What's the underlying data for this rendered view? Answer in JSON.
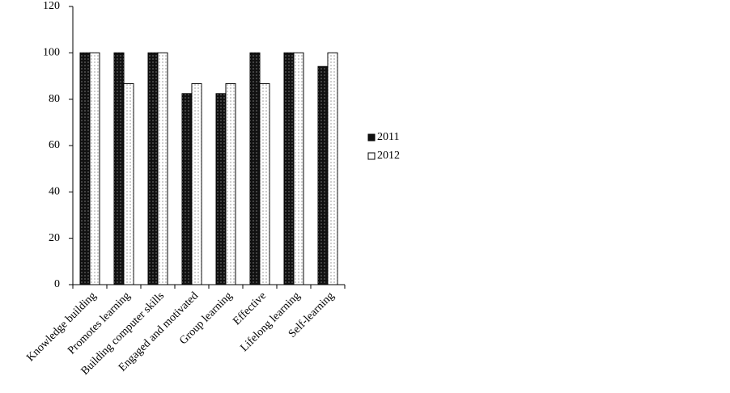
{
  "chart_data": {
    "type": "bar",
    "categories": [
      "Knowledge building",
      "Promotes learning",
      "Building computer skills",
      "Engaged and motivated",
      "Group learning",
      "Effective",
      "Lifelong learning",
      "Self-learning"
    ],
    "series": [
      {
        "name": "2011",
        "color": "#111111",
        "values": [
          100,
          100,
          100,
          82.4,
          82.4,
          100,
          100,
          94.1
        ]
      },
      {
        "name": "2012",
        "color": "#ffffff",
        "values": [
          100,
          86.7,
          100,
          86.7,
          86.7,
          86.7,
          100,
          100
        ]
      }
    ],
    "ylim": [
      0,
      120
    ],
    "yticks": [
      0,
      20,
      40,
      60,
      80,
      100,
      120
    ],
    "grid": false,
    "legend": "right"
  }
}
